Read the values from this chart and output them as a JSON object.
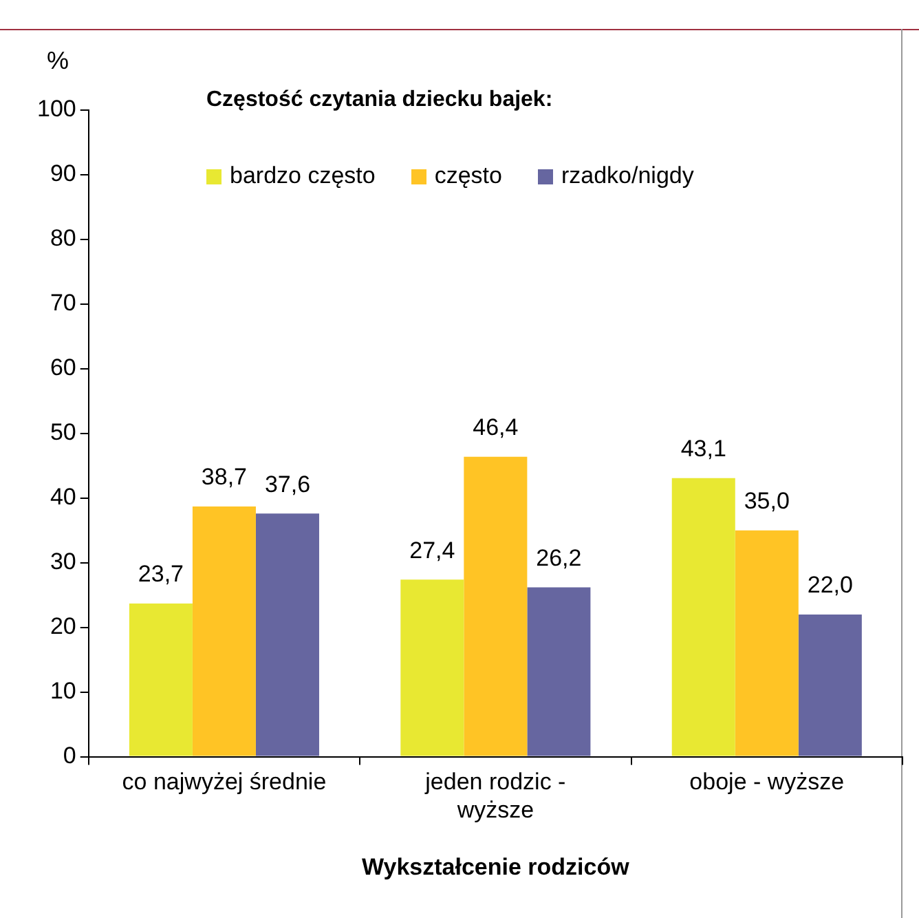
{
  "chart_data": {
    "type": "bar",
    "title": "Częstość czytania dziecku bajek:",
    "ylabel": "%",
    "xlabel": "Wykształcenie rodziców",
    "categories": [
      "co najwyżej średnie",
      "jeden rodzic -\nwyższe",
      "oboje - wyższe"
    ],
    "series": [
      {
        "name": "bardzo często",
        "color": "#e8e832",
        "values": [
          23.7,
          27.4,
          43.1
        ],
        "value_labels": [
          "23,7",
          "27,4",
          "43,1"
        ]
      },
      {
        "name": "często",
        "color": "#ffc425",
        "values": [
          38.7,
          46.4,
          35.0
        ],
        "value_labels": [
          "38,7",
          "46,4",
          "35,0"
        ]
      },
      {
        "name": "rzadko/nigdy",
        "color": "#6666a0",
        "values": [
          37.6,
          26.2,
          22.0
        ],
        "value_labels": [
          "37,6",
          "26,2",
          "22,0"
        ]
      }
    ],
    "ylim": [
      0,
      100
    ],
    "yticks": [
      0,
      10,
      20,
      30,
      40,
      50,
      60,
      70,
      80,
      90,
      100
    ],
    "grid": false,
    "legend": "top"
  }
}
